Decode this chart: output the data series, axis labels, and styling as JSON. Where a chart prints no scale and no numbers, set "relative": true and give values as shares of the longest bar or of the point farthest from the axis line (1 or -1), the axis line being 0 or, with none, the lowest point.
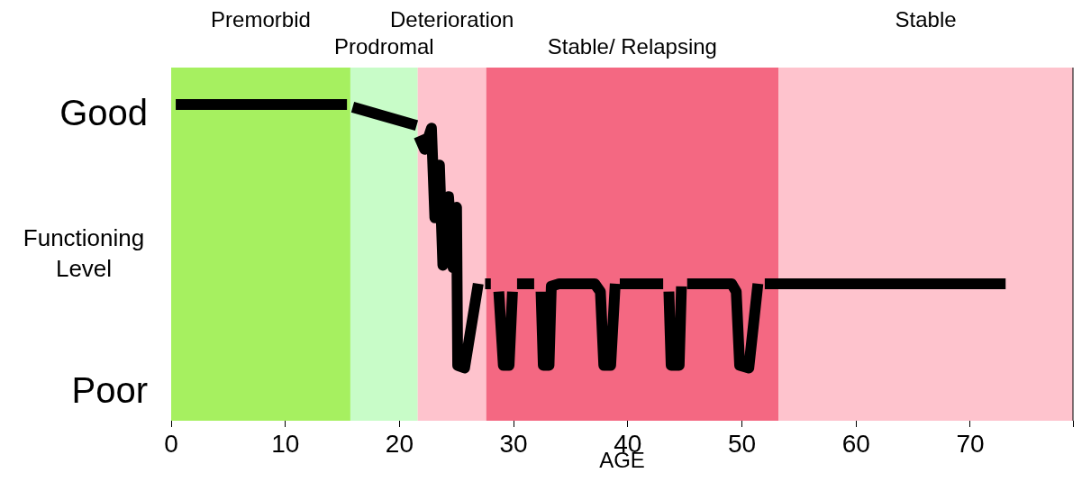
{
  "chart_data": {
    "type": "line",
    "xlabel": "AGE",
    "ylabel": "Functioning Level",
    "xlim": [
      0,
      79
    ],
    "xticks": [
      0,
      10,
      20,
      30,
      40,
      50,
      60,
      70,
      {
        "value": 79,
        "label": null
      }
    ],
    "relative": true,
    "annotations": [
      "Good",
      "Poor"
    ],
    "legend": false,
    "marker": "none",
    "line_style": "solid",
    "bands": [
      {
        "axis": "x",
        "from": 0,
        "to": 15.7,
        "label": "Premorbid",
        "color": "#a6f060"
      },
      {
        "axis": "x",
        "from": 15.7,
        "to": 21.6,
        "label": "Prodromal",
        "color": "#c8fcc8"
      },
      {
        "axis": "x",
        "from": 21.6,
        "to": 27.6,
        "label": "Deterioration",
        "color": "#fec3cd"
      },
      {
        "axis": "x",
        "from": 27.6,
        "to": 53.2,
        "label": "Stable/ Relapsing",
        "color": "#f46882"
      },
      {
        "axis": "x",
        "from": 53.2,
        "to": 79,
        "label": "Stable",
        "color": "#fec3cd"
      }
    ],
    "series": [
      {
        "color": "#000000",
        "x": [
          0.4,
          15.4,
          15.6,
          15.9,
          21.5,
          21.6,
          21.7,
          22.2,
          22.8,
          23.1,
          23.5,
          23.8,
          24.3,
          24.7,
          25.0,
          25.1,
          25.7,
          26.9,
          27.2,
          27.5,
          28.0,
          28.3,
          28.7,
          29.1,
          29.6,
          29.9,
          30.1,
          30.3,
          31.8,
          32.1,
          32.4,
          32.6,
          33.1,
          33.3,
          34.0,
          37.1,
          37.6,
          37.9,
          38.5,
          38.9,
          39.1,
          39.3,
          43.1,
          43.4,
          43.6,
          43.8,
          44.5,
          44.7,
          44.9,
          45.2,
          49.1,
          49.5,
          49.8,
          50.6,
          51.4,
          51.7,
          52.0,
          73.1
        ],
        "values": [
          1,
          1,
          null,
          0.99,
          0.92,
          null,
          0.88,
          0.83,
          0.91,
          0.57,
          0.77,
          0.39,
          0.65,
          0.38,
          0.61,
          0.01,
          0,
          0.32,
          null,
          0.32,
          0.32,
          null,
          0.29,
          0.01,
          0.01,
          0.29,
          null,
          0.32,
          0.32,
          null,
          0.29,
          0.01,
          0.01,
          0.31,
          0.32,
          0.32,
          0.29,
          0.01,
          0.01,
          0.32,
          null,
          0.32,
          0.32,
          null,
          0.29,
          0.01,
          0.01,
          0.31,
          null,
          0.32,
          0.32,
          0.29,
          0.01,
          0,
          0.32,
          null,
          0.32,
          0.32
        ]
      }
    ]
  }
}
